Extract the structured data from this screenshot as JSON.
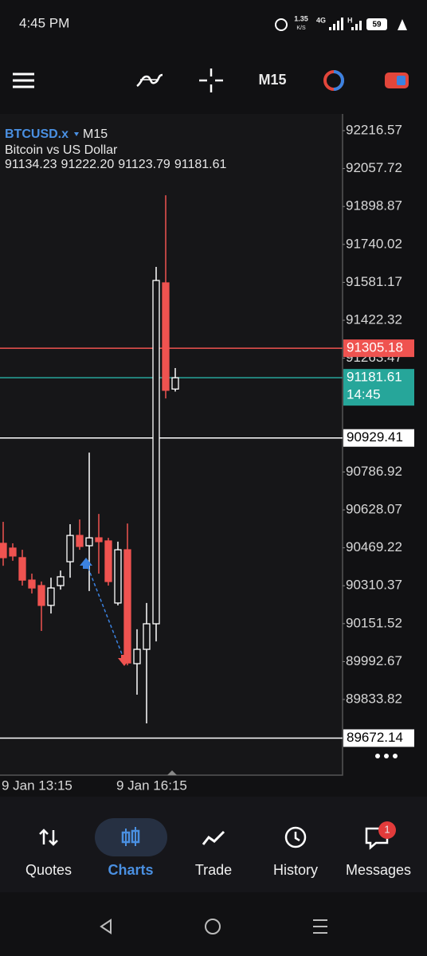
{
  "status_bar": {
    "time": "4:45 PM",
    "speed": "1.35",
    "speed_unit": "K/S",
    "network": "4G",
    "network_h": "H",
    "battery": "59"
  },
  "toolbar": {
    "timeframe": "M15"
  },
  "chart_data": {
    "type": "candlestick",
    "symbol": "BTCUSD.x",
    "timeframe": "M15",
    "description": "Bitcoin vs US Dollar",
    "ohlc_labels": [
      "91134.23",
      "91222.20",
      "91123.79",
      "91181.61"
    ],
    "categories": [
      "9 Jan 13:15",
      null,
      null,
      null,
      null,
      null,
      null,
      null,
      null,
      null,
      null,
      null,
      "9 Jan 16:15",
      null,
      null,
      null,
      null,
      null,
      null
    ],
    "open": [
      90488,
      90468,
      90428,
      90334,
      90311,
      90228,
      90311,
      90411,
      90521,
      90478,
      90511,
      90498,
      90238,
      90461,
      89984,
      90044,
      90151,
      91579,
      91134.23
    ],
    "high": [
      90578,
      90488,
      90461,
      90361,
      90328,
      90344,
      90374,
      90568,
      90588,
      90868,
      90611,
      90511,
      90495,
      90571,
      90128,
      90238,
      91646,
      91946,
      91222.2
    ],
    "low": [
      90394,
      90415,
      90311,
      90278,
      90121,
      90194,
      90294,
      90344,
      90461,
      90288,
      90361,
      90311,
      90228,
      89977,
      89854,
      89734,
      90077,
      91095,
      91123.79
    ],
    "close": [
      90428,
      90435,
      90334,
      90301,
      90228,
      90301,
      90348,
      90521,
      90475,
      90511,
      90495,
      90328,
      90461,
      89987,
      90044,
      90151,
      91589,
      91129,
      91181.61
    ],
    "up_color": "#ffffff",
    "down_color": "#ef5350",
    "ylim": [
      89516.9,
      92286.65
    ],
    "yticks": [
      92216.57,
      92057.72,
      91898.87,
      91740.02,
      91581.17,
      91422.32,
      91263.47,
      90786.92,
      90628.07,
      90469.22,
      90310.37,
      90151.52,
      89992.67,
      89833.82
    ],
    "price_lines": [
      {
        "value": 91305.18,
        "color": "#ef5350",
        "text_color": "#ffffff"
      },
      {
        "value": 91181.61,
        "color": "#26a69a",
        "text_color": "#ffffff",
        "countdown": "14:45"
      },
      {
        "value": 90929.41,
        "color": "#ffffff",
        "text_color": "#000000"
      },
      {
        "value": 89672.14,
        "color": "#ffffff",
        "text_color": "#000000"
      }
    ]
  },
  "nav": {
    "tabs": [
      {
        "label": "Quotes"
      },
      {
        "label": "Charts"
      },
      {
        "label": "Trade"
      },
      {
        "label": "History"
      },
      {
        "label": "Messages"
      }
    ],
    "active": 1,
    "badge": "1"
  }
}
